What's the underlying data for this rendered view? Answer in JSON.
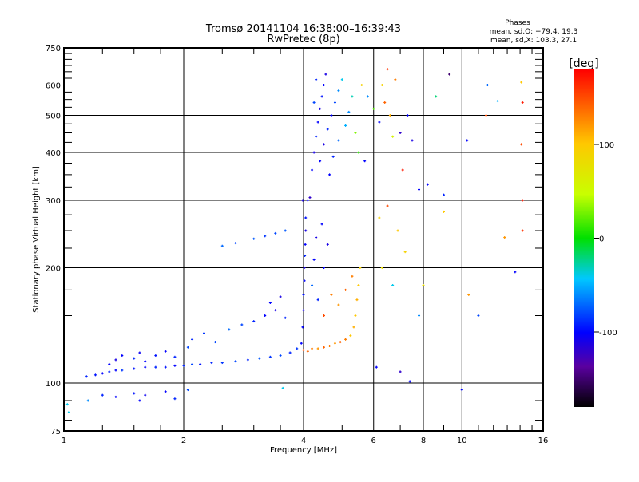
{
  "chart_data": {
    "type": "scatter",
    "title": "Tromsø 20141104 16:38:00–16:39:43",
    "subtitle": "RwPretec (8p)",
    "xlabel": "Frequency [MHz]",
    "ylabel": "Stationary phase Virtual Height [km]",
    "xscale": "log",
    "yscale": "log",
    "xlim": [
      1,
      16
    ],
    "ylim": [
      75,
      750
    ],
    "xticks": [
      1,
      2,
      4,
      6,
      8,
      10,
      16
    ],
    "xtick_labels": [
      "1",
      "2",
      "4",
      "6",
      "8",
      "10",
      "16"
    ],
    "yticks": [
      75,
      100,
      200,
      300,
      400,
      500,
      600,
      750
    ],
    "ytick_labels": [
      "75",
      "100",
      "200",
      "300",
      "400",
      "500",
      "600",
      "750"
    ],
    "grid": true,
    "legend": {
      "title": "Phases",
      "lines": [
        "mean, sd,O: −79.4, 19.3",
        "mean, sd,X: 103.3, 27.1"
      ],
      "placement": "top-right"
    },
    "colorbar": {
      "label": "[deg]",
      "range": [
        -180,
        180
      ],
      "ticks": [
        100,
        0,
        -100
      ],
      "tick_labels": [
        "100",
        "0",
        "-100"
      ]
    },
    "points_columns": [
      "frequency_mhz",
      "height_km",
      "phase_deg"
    ],
    "points": [
      [
        1.02,
        88,
        -40
      ],
      [
        1.03,
        84,
        -40
      ],
      [
        1.14,
        104,
        -90
      ],
      [
        1.2,
        105,
        -95
      ],
      [
        1.25,
        106,
        -100
      ],
      [
        1.3,
        107,
        -90
      ],
      [
        1.35,
        108,
        -100
      ],
      [
        1.4,
        108,
        -85
      ],
      [
        1.5,
        109,
        -95
      ],
      [
        1.6,
        110,
        -100
      ],
      [
        1.7,
        110,
        -90
      ],
      [
        1.8,
        110,
        -95
      ],
      [
        1.9,
        111,
        -100
      ],
      [
        2.0,
        111,
        -90
      ],
      [
        2.1,
        112,
        -80
      ],
      [
        2.2,
        112,
        -95
      ],
      [
        2.35,
        113,
        -90
      ],
      [
        2.5,
        113,
        -85
      ],
      [
        2.7,
        114,
        -80
      ],
      [
        2.9,
        115,
        -90
      ],
      [
        3.1,
        116,
        -75
      ],
      [
        3.3,
        117,
        -85
      ],
      [
        3.5,
        118,
        -80
      ],
      [
        3.7,
        120,
        -90
      ],
      [
        3.85,
        123,
        -85
      ],
      [
        3.95,
        127,
        -100
      ],
      [
        1.3,
        112,
        -100
      ],
      [
        1.35,
        115,
        -110
      ],
      [
        1.4,
        118,
        -100
      ],
      [
        1.5,
        116,
        -90
      ],
      [
        1.55,
        120,
        -105
      ],
      [
        1.6,
        114,
        -100
      ],
      [
        1.7,
        118,
        -95
      ],
      [
        1.8,
        121,
        -100
      ],
      [
        1.9,
        117,
        -90
      ],
      [
        2.05,
        124,
        -80
      ],
      [
        2.1,
        130,
        -90
      ],
      [
        2.25,
        135,
        -85
      ],
      [
        2.4,
        128,
        -80
      ],
      [
        2.6,
        138,
        -70
      ],
      [
        2.8,
        142,
        -80
      ],
      [
        3.0,
        145,
        -90
      ],
      [
        3.2,
        150,
        -100
      ],
      [
        3.4,
        155,
        -110
      ],
      [
        3.6,
        148,
        -90
      ],
      [
        3.3,
        162,
        -100
      ],
      [
        3.5,
        168,
        -110
      ],
      [
        1.25,
        93,
        -90
      ],
      [
        1.35,
        92,
        -100
      ],
      [
        1.5,
        94,
        -95
      ],
      [
        1.55,
        90,
        -100
      ],
      [
        1.6,
        93,
        -105
      ],
      [
        1.8,
        95,
        -100
      ],
      [
        1.9,
        91,
        -90
      ],
      [
        2.05,
        96,
        -80
      ],
      [
        1.15,
        90,
        -60
      ],
      [
        3.55,
        97,
        -40
      ],
      [
        2.5,
        228,
        -70
      ],
      [
        2.7,
        232,
        -80
      ],
      [
        3.0,
        238,
        -75
      ],
      [
        3.2,
        242,
        -85
      ],
      [
        3.4,
        246,
        -80
      ],
      [
        3.6,
        250,
        -75
      ],
      [
        3.98,
        140,
        -100
      ],
      [
        4.0,
        155,
        -110
      ],
      [
        4.0,
        170,
        -95
      ],
      [
        4.02,
        185,
        -100
      ],
      [
        4.02,
        200,
        -110
      ],
      [
        4.03,
        215,
        -90
      ],
      [
        4.04,
        230,
        -100
      ],
      [
        4.05,
        250,
        -110
      ],
      [
        4.05,
        270,
        -95
      ],
      [
        3.98,
        300,
        -110
      ],
      [
        4.1,
        300,
        -100
      ],
      [
        4.15,
        305,
        -120
      ],
      [
        4.2,
        180,
        -70
      ],
      [
        4.25,
        210,
        -100
      ],
      [
        4.3,
        240,
        -110
      ],
      [
        4.35,
        165,
        -90
      ],
      [
        4.5,
        200,
        -100
      ],
      [
        4.6,
        230,
        -110
      ],
      [
        4.45,
        260,
        -100
      ],
      [
        4.2,
        360,
        -100
      ],
      [
        4.25,
        400,
        -110
      ],
      [
        4.3,
        440,
        -90
      ],
      [
        4.35,
        480,
        -100
      ],
      [
        4.4,
        520,
        -110
      ],
      [
        4.45,
        560,
        -95
      ],
      [
        4.5,
        600,
        -100
      ],
      [
        4.55,
        640,
        -110
      ],
      [
        4.3,
        620,
        -90
      ],
      [
        4.25,
        540,
        -80
      ],
      [
        4.4,
        380,
        -100
      ],
      [
        4.5,
        420,
        -110
      ],
      [
        4.6,
        460,
        -90
      ],
      [
        4.7,
        500,
        -100
      ],
      [
        4.8,
        540,
        -80
      ],
      [
        4.9,
        580,
        -60
      ],
      [
        5.0,
        620,
        -40
      ],
      [
        4.65,
        350,
        -100
      ],
      [
        4.75,
        390,
        -90
      ],
      [
        4.9,
        430,
        -70
      ],
      [
        5.1,
        470,
        -50
      ],
      [
        5.2,
        510,
        -60
      ],
      [
        5.3,
        560,
        -30
      ],
      [
        5.4,
        450,
        30
      ],
      [
        5.5,
        400,
        10
      ],
      [
        5.6,
        600,
        90
      ],
      [
        5.7,
        380,
        -100
      ],
      [
        4.0,
        122,
        150
      ],
      [
        4.1,
        121,
        140
      ],
      [
        4.2,
        123,
        130
      ],
      [
        4.35,
        123,
        120
      ],
      [
        4.5,
        124,
        140
      ],
      [
        4.65,
        125,
        130
      ],
      [
        4.8,
        127,
        120
      ],
      [
        4.95,
        128,
        140
      ],
      [
        5.1,
        130,
        130
      ],
      [
        5.25,
        133,
        100
      ],
      [
        5.35,
        140,
        110
      ],
      [
        5.4,
        150,
        100
      ],
      [
        5.45,
        165,
        110
      ],
      [
        5.5,
        180,
        100
      ],
      [
        5.3,
        190,
        130
      ],
      [
        5.1,
        175,
        140
      ],
      [
        4.9,
        160,
        120
      ],
      [
        4.7,
        170,
        130
      ],
      [
        4.5,
        150,
        150
      ],
      [
        5.55,
        200,
        90
      ],
      [
        5.8,
        560,
        -60
      ],
      [
        6.0,
        520,
        20
      ],
      [
        6.2,
        480,
        -100
      ],
      [
        6.3,
        600,
        90
      ],
      [
        6.4,
        540,
        140
      ],
      [
        6.5,
        660,
        160
      ],
      [
        6.6,
        500,
        110
      ],
      [
        6.7,
        440,
        60
      ],
      [
        6.8,
        620,
        130
      ],
      [
        7.0,
        450,
        -120
      ],
      [
        7.1,
        360,
        170
      ],
      [
        7.3,
        500,
        -100
      ],
      [
        7.5,
        430,
        -110
      ],
      [
        7.8,
        320,
        -100
      ],
      [
        6.2,
        270,
        90
      ],
      [
        6.5,
        290,
        150
      ],
      [
        6.9,
        250,
        100
      ],
      [
        6.3,
        200,
        80
      ],
      [
        6.7,
        180,
        -40
      ],
      [
        7.2,
        220,
        90
      ],
      [
        7.8,
        150,
        -60
      ],
      [
        6.1,
        110,
        -100
      ],
      [
        7.0,
        107,
        -120
      ],
      [
        7.4,
        101,
        -100
      ],
      [
        8.0,
        180,
        80
      ],
      [
        9.0,
        280,
        100
      ],
      [
        9.3,
        640,
        -150
      ],
      [
        8.6,
        560,
        -20
      ],
      [
        10.3,
        430,
        -100
      ],
      [
        10.4,
        170,
        120
      ],
      [
        11.5,
        500,
        150
      ],
      [
        11.6,
        600,
        -70
      ],
      [
        12.3,
        545,
        -50
      ],
      [
        12.8,
        240,
        120
      ],
      [
        13.6,
        195,
        -100
      ],
      [
        14.1,
        610,
        100
      ],
      [
        14.2,
        540,
        170
      ],
      [
        14.1,
        420,
        150
      ],
      [
        14.2,
        300,
        170
      ],
      [
        14.2,
        250,
        160
      ],
      [
        11.0,
        150,
        -80
      ],
      [
        10.0,
        96,
        -100
      ],
      [
        8.2,
        330,
        -100
      ],
      [
        9.0,
        310,
        -90
      ]
    ]
  }
}
